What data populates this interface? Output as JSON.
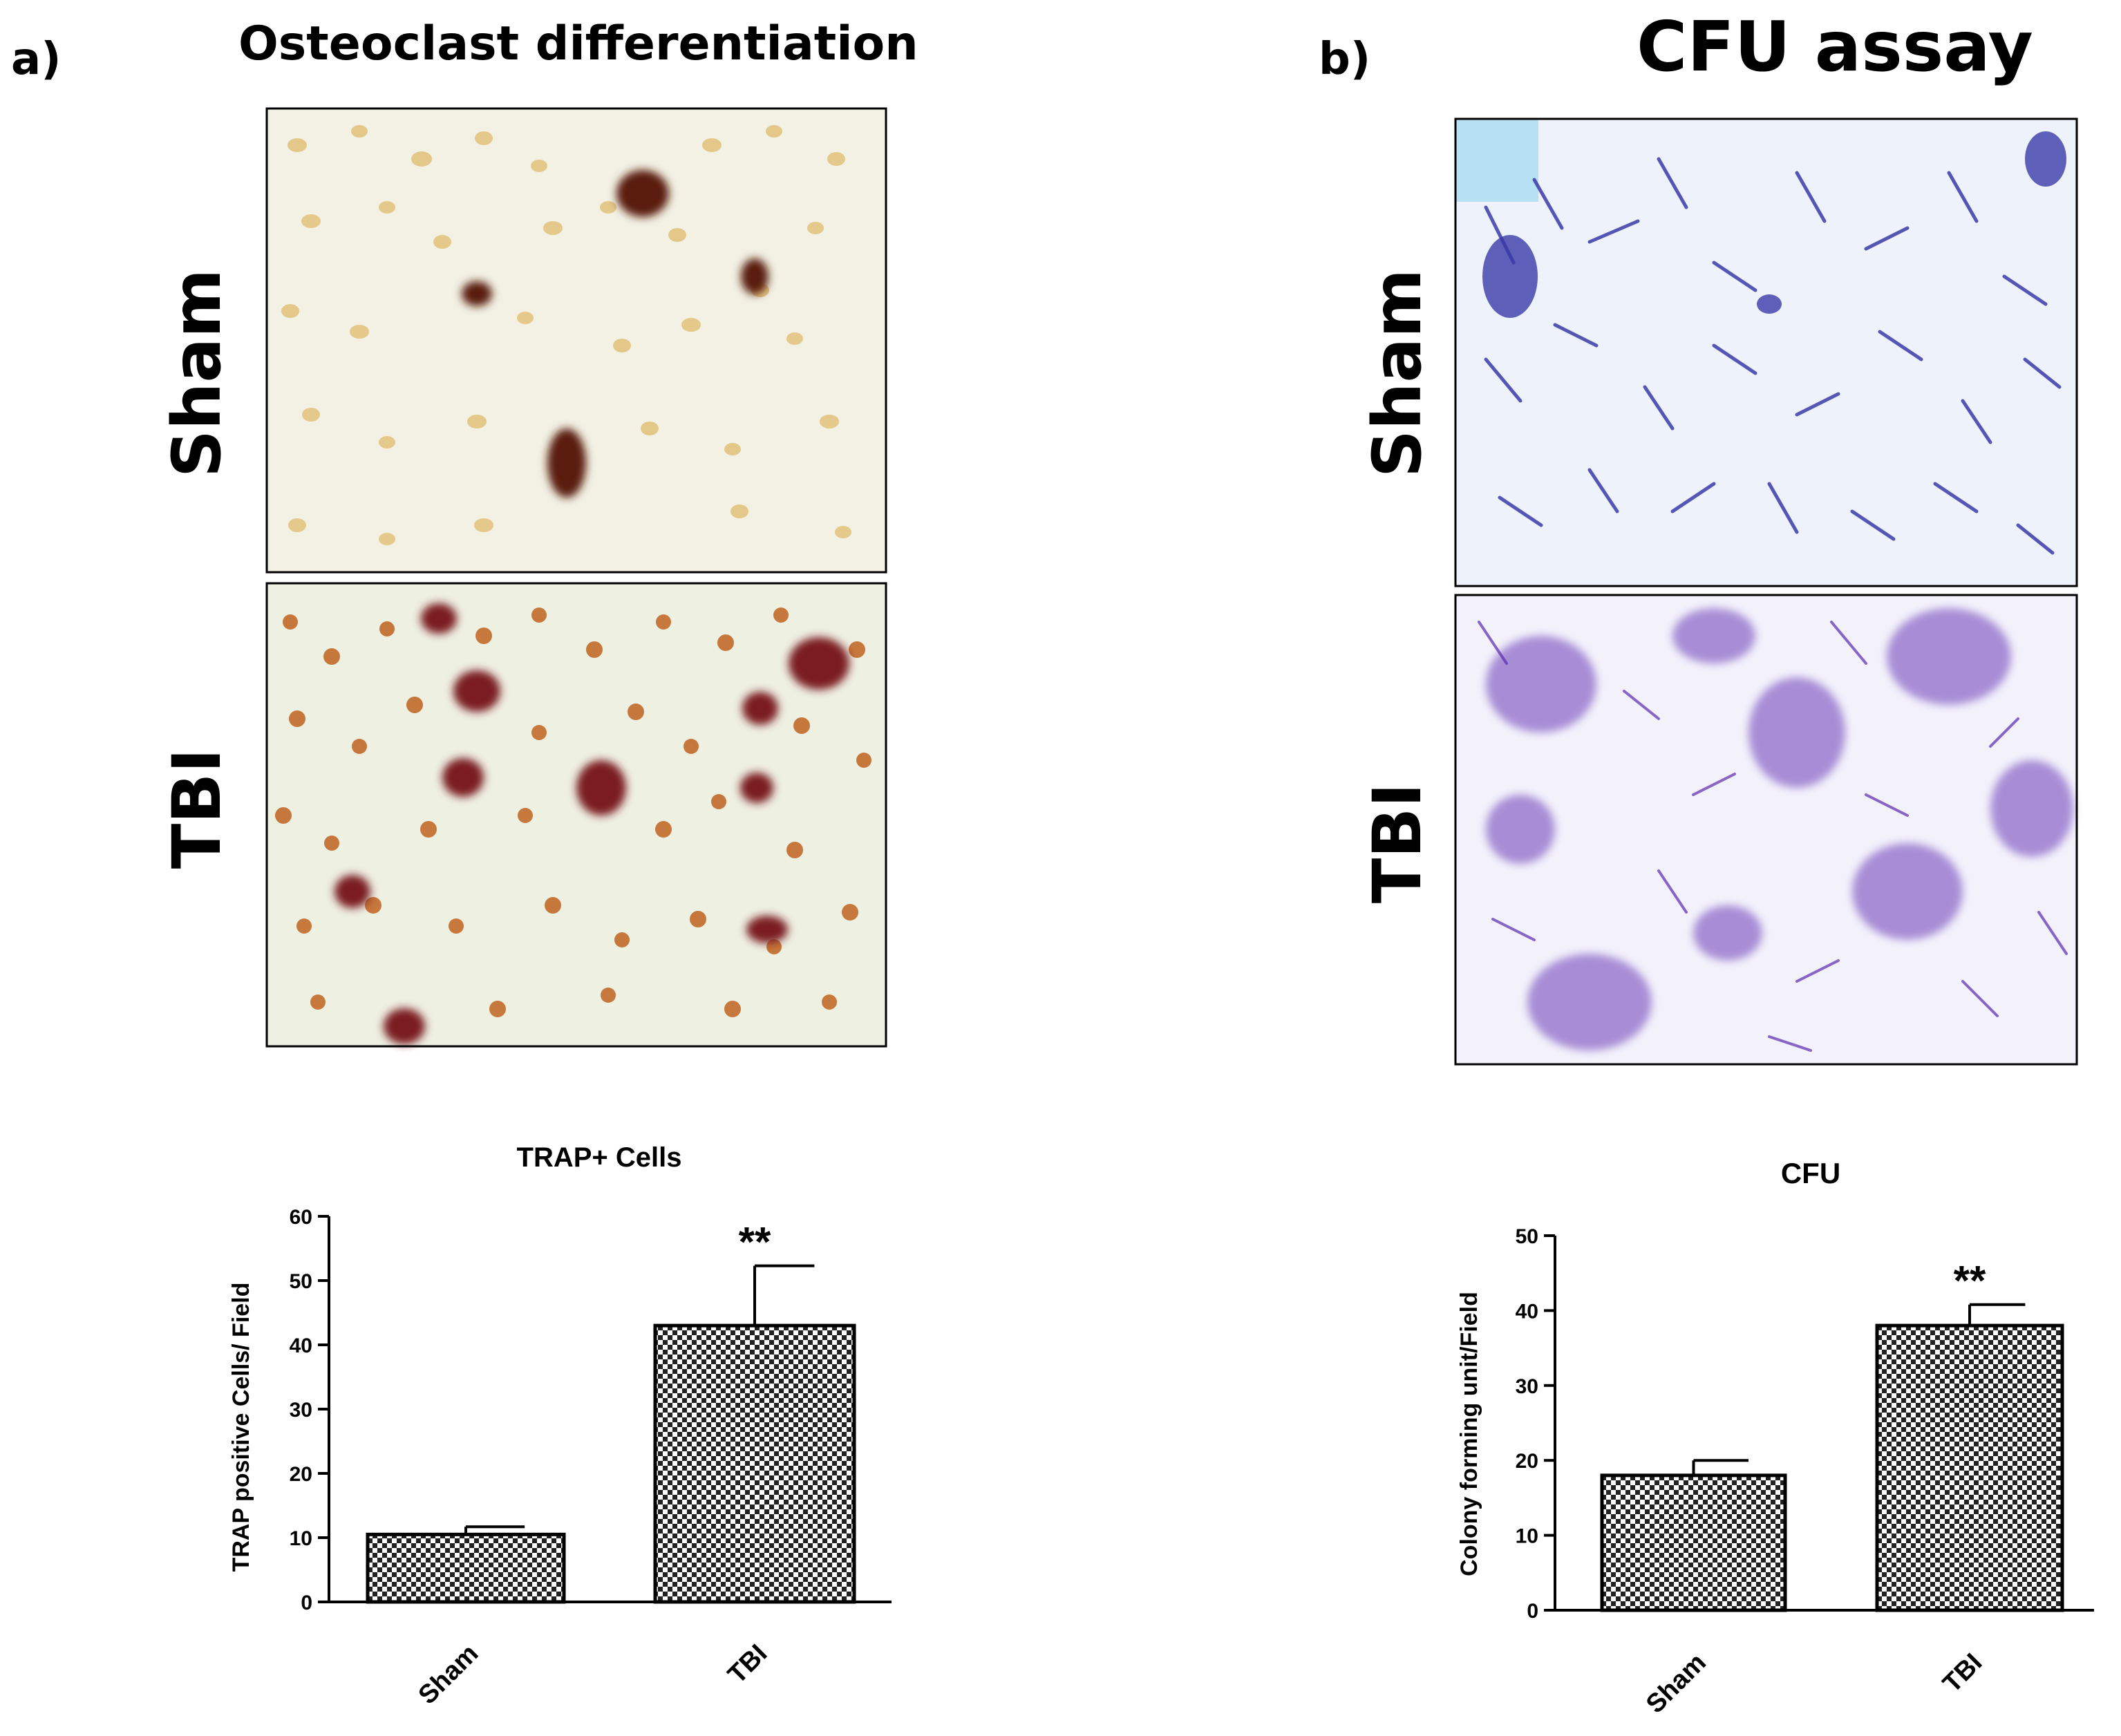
{
  "panel_a": {
    "label": "a)",
    "title": "Osteoclast differentiation",
    "row_labels": [
      "Sham",
      "TBI"
    ]
  },
  "panel_b": {
    "label": "b)",
    "title": "CFU assay",
    "row_labels": [
      "Sham",
      "TBI"
    ]
  },
  "colors": {
    "bar_fill_light": "#ffffff",
    "bar_fill_dark": "#222222",
    "osteoclast_bg": "#f2f1e4",
    "cfu_bg": "#eef1fb"
  },
  "chart_data": [
    {
      "type": "bar",
      "title": "TRAP+ Cells",
      "xlabel": "",
      "ylabel": "TRAP positive Cells/ Field",
      "categories": [
        "Sham",
        "TBI"
      ],
      "values": [
        10.5,
        43
      ],
      "errors": [
        1.2,
        9.3
      ],
      "significance": [
        "",
        "**"
      ],
      "ylim": [
        0,
        60
      ],
      "yticks": [
        "0",
        "10",
        "20",
        "30",
        "40",
        "50",
        "60"
      ],
      "grid": false
    },
    {
      "type": "bar",
      "title": "CFU",
      "xlabel": "",
      "ylabel": "Colony forming unit/Field",
      "categories": [
        "Sham",
        "TBI"
      ],
      "values": [
        18,
        38
      ],
      "errors": [
        2,
        2.8
      ],
      "significance": [
        "",
        "**"
      ],
      "ylim": [
        0,
        50
      ],
      "yticks": [
        "0",
        "10",
        "20",
        "30",
        "40",
        "50"
      ],
      "grid": false
    }
  ]
}
